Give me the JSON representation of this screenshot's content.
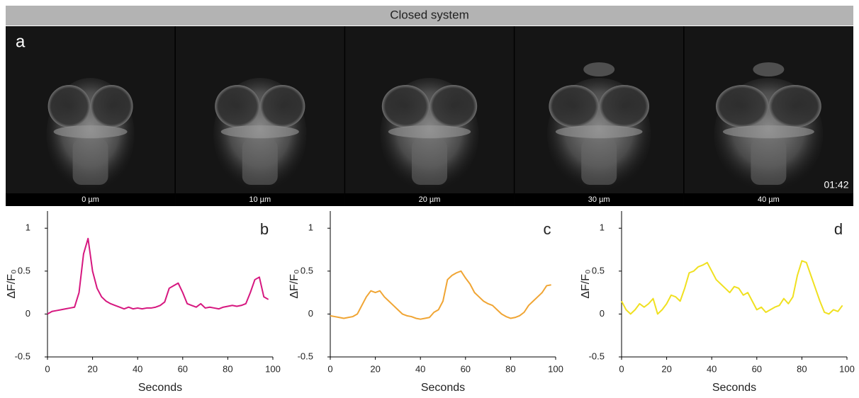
{
  "header": "Closed system",
  "panel_a": {
    "label": "a",
    "timestamp": "01:42",
    "images": [
      "0 µm",
      "10 µm",
      "20 µm",
      "30 µm",
      "40 µm"
    ]
  },
  "chart_data": [
    {
      "type": "line",
      "panel_label": "b",
      "xlabel": "Seconds",
      "ylabel": "ΔF/F₀",
      "color": "#d6177f",
      "x": [
        0,
        2,
        4,
        6,
        8,
        10,
        12,
        14,
        16,
        18,
        20,
        22,
        24,
        26,
        28,
        30,
        32,
        34,
        36,
        38,
        40,
        42,
        44,
        46,
        48,
        50,
        52,
        54,
        56,
        58,
        60,
        62,
        64,
        66,
        68,
        70,
        72,
        74,
        76,
        78,
        80,
        82,
        84,
        86,
        88,
        90,
        92,
        94,
        96,
        98
      ],
      "values": [
        0.0,
        0.03,
        0.04,
        0.05,
        0.06,
        0.07,
        0.08,
        0.25,
        0.7,
        0.88,
        0.5,
        0.3,
        0.2,
        0.15,
        0.12,
        0.1,
        0.08,
        0.06,
        0.08,
        0.06,
        0.07,
        0.06,
        0.07,
        0.07,
        0.08,
        0.1,
        0.14,
        0.3,
        0.33,
        0.36,
        0.25,
        0.12,
        0.1,
        0.08,
        0.12,
        0.07,
        0.08,
        0.07,
        0.06,
        0.08,
        0.09,
        0.1,
        0.09,
        0.1,
        0.12,
        0.25,
        0.4,
        0.43,
        0.2,
        0.17
      ],
      "xlim": [
        0,
        100
      ],
      "xticks": [
        0,
        20,
        40,
        60,
        80,
        100
      ],
      "ylim": [
        -0.5,
        1.2
      ],
      "yticks": [
        -0.5,
        0,
        0.5,
        1
      ]
    },
    {
      "type": "line",
      "panel_label": "c",
      "xlabel": "Seconds",
      "ylabel": "ΔF/F₀",
      "color": "#f0a534",
      "x": [
        0,
        2,
        4,
        6,
        8,
        10,
        12,
        14,
        16,
        18,
        20,
        22,
        24,
        26,
        28,
        30,
        32,
        34,
        36,
        38,
        40,
        42,
        44,
        46,
        48,
        50,
        52,
        54,
        56,
        58,
        60,
        62,
        64,
        66,
        68,
        70,
        72,
        74,
        76,
        78,
        80,
        82,
        84,
        86,
        88,
        90,
        92,
        94,
        96,
        98
      ],
      "values": [
        -0.02,
        -0.03,
        -0.04,
        -0.05,
        -0.04,
        -0.03,
        0.0,
        0.1,
        0.2,
        0.27,
        0.25,
        0.27,
        0.2,
        0.15,
        0.1,
        0.05,
        0.0,
        -0.02,
        -0.03,
        -0.05,
        -0.06,
        -0.05,
        -0.04,
        0.02,
        0.05,
        0.15,
        0.4,
        0.45,
        0.48,
        0.5,
        0.42,
        0.35,
        0.25,
        0.2,
        0.15,
        0.12,
        0.1,
        0.05,
        0.0,
        -0.03,
        -0.05,
        -0.04,
        -0.02,
        0.02,
        0.1,
        0.15,
        0.2,
        0.25,
        0.33,
        0.34
      ],
      "xlim": [
        0,
        100
      ],
      "xticks": [
        0,
        20,
        40,
        60,
        80,
        100
      ],
      "ylim": [
        -0.5,
        1.2
      ],
      "yticks": [
        -0.5,
        0,
        0.5,
        1
      ]
    },
    {
      "type": "line",
      "panel_label": "d",
      "xlabel": "Seconds",
      "ylabel": "ΔF/F₀",
      "color": "#f0e020",
      "x": [
        0,
        2,
        4,
        6,
        8,
        10,
        12,
        14,
        16,
        18,
        20,
        22,
        24,
        26,
        28,
        30,
        32,
        34,
        36,
        38,
        40,
        42,
        44,
        46,
        48,
        50,
        52,
        54,
        56,
        58,
        60,
        62,
        64,
        66,
        68,
        70,
        72,
        74,
        76,
        78,
        80,
        82,
        84,
        86,
        88,
        90,
        92,
        94,
        96,
        98
      ],
      "values": [
        0.15,
        0.05,
        0.0,
        0.05,
        0.12,
        0.08,
        0.12,
        0.18,
        0.0,
        0.05,
        0.12,
        0.22,
        0.2,
        0.15,
        0.3,
        0.48,
        0.5,
        0.55,
        0.57,
        0.6,
        0.5,
        0.4,
        0.35,
        0.3,
        0.25,
        0.32,
        0.3,
        0.22,
        0.25,
        0.15,
        0.05,
        0.08,
        0.02,
        0.05,
        0.08,
        0.1,
        0.18,
        0.12,
        0.2,
        0.45,
        0.62,
        0.6,
        0.45,
        0.3,
        0.15,
        0.02,
        0.0,
        0.05,
        0.03,
        0.1
      ],
      "xlim": [
        0,
        100
      ],
      "xticks": [
        0,
        20,
        40,
        60,
        80,
        100
      ],
      "ylim": [
        -0.5,
        1.2
      ],
      "yticks": [
        -0.5,
        0,
        0.5,
        1
      ]
    }
  ]
}
